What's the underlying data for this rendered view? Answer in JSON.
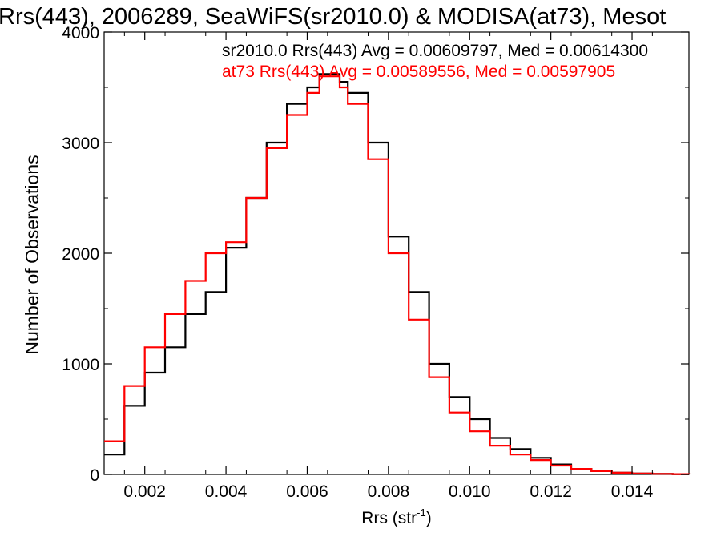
{
  "chart_data": {
    "type": "line",
    "title": "Rrs(443), 2006289, SeaWiFS(sr2010.0) & MODISA(at73), Mesot",
    "xlabel": "Rrs (str",
    "xlabel_superscript": "-1",
    "xlabel_suffix": ")",
    "ylabel": "Number of Observations",
    "xlim": [
      0.001,
      0.0154
    ],
    "ylim": [
      0,
      4000
    ],
    "xticks": [
      {
        "value": 0.002,
        "label": "0.002"
      },
      {
        "value": 0.004,
        "label": "0.004"
      },
      {
        "value": 0.006,
        "label": "0.006"
      },
      {
        "value": 0.008,
        "label": "0.008"
      },
      {
        "value": 0.01,
        "label": "0.010"
      },
      {
        "value": 0.012,
        "label": "0.012"
      },
      {
        "value": 0.014,
        "label": "0.014"
      }
    ],
    "yticks": [
      {
        "value": 0,
        "label": "0"
      },
      {
        "value": 1000,
        "label": "1000"
      },
      {
        "value": 2000,
        "label": "2000"
      },
      {
        "value": 3000,
        "label": "3000"
      },
      {
        "value": 4000,
        "label": "4000"
      }
    ],
    "annotations": [
      {
        "text": "sr2010.0 Rrs(443) Avg = 0.00609797, Med = 0.00614300",
        "color": "#000000"
      },
      {
        "text": "at73 Rrs(443) Avg = 0.00589556, Med = 0.00597905",
        "color": "#ff0000"
      }
    ],
    "grid": false,
    "step": true,
    "series": [
      {
        "color": "#000000",
        "x": [
          0.001,
          0.0015,
          0.002,
          0.0025,
          0.003,
          0.0035,
          0.004,
          0.0045,
          0.005,
          0.0055,
          0.006,
          0.0063,
          0.0065,
          0.0068,
          0.007,
          0.0075,
          0.008,
          0.0085,
          0.009,
          0.0095,
          0.01,
          0.0105,
          0.011,
          0.0115,
          0.012,
          0.0125,
          0.013,
          0.0135,
          0.014,
          0.0145,
          0.015,
          0.0154
        ],
        "values": [
          180,
          620,
          920,
          1150,
          1450,
          1650,
          2050,
          2500,
          3000,
          3350,
          3500,
          3620,
          3620,
          3550,
          3450,
          3000,
          2150,
          1650,
          1000,
          700,
          500,
          330,
          230,
          150,
          90,
          50,
          30,
          15,
          8,
          5,
          3,
          2
        ]
      },
      {
        "color": "#ff0000",
        "x": [
          0.001,
          0.0015,
          0.002,
          0.0025,
          0.003,
          0.0035,
          0.004,
          0.0045,
          0.005,
          0.0055,
          0.006,
          0.0063,
          0.0065,
          0.0068,
          0.007,
          0.0075,
          0.008,
          0.0085,
          0.009,
          0.0095,
          0.01,
          0.0105,
          0.011,
          0.0115,
          0.012,
          0.0125,
          0.013,
          0.0135,
          0.014,
          0.0145,
          0.015,
          0.0154
        ],
        "values": [
          300,
          800,
          1150,
          1450,
          1750,
          2000,
          2100,
          2500,
          2950,
          3250,
          3450,
          3600,
          3600,
          3500,
          3350,
          2850,
          2000,
          1400,
          880,
          560,
          390,
          260,
          180,
          130,
          80,
          50,
          30,
          15,
          8,
          5,
          3,
          2
        ]
      }
    ]
  }
}
